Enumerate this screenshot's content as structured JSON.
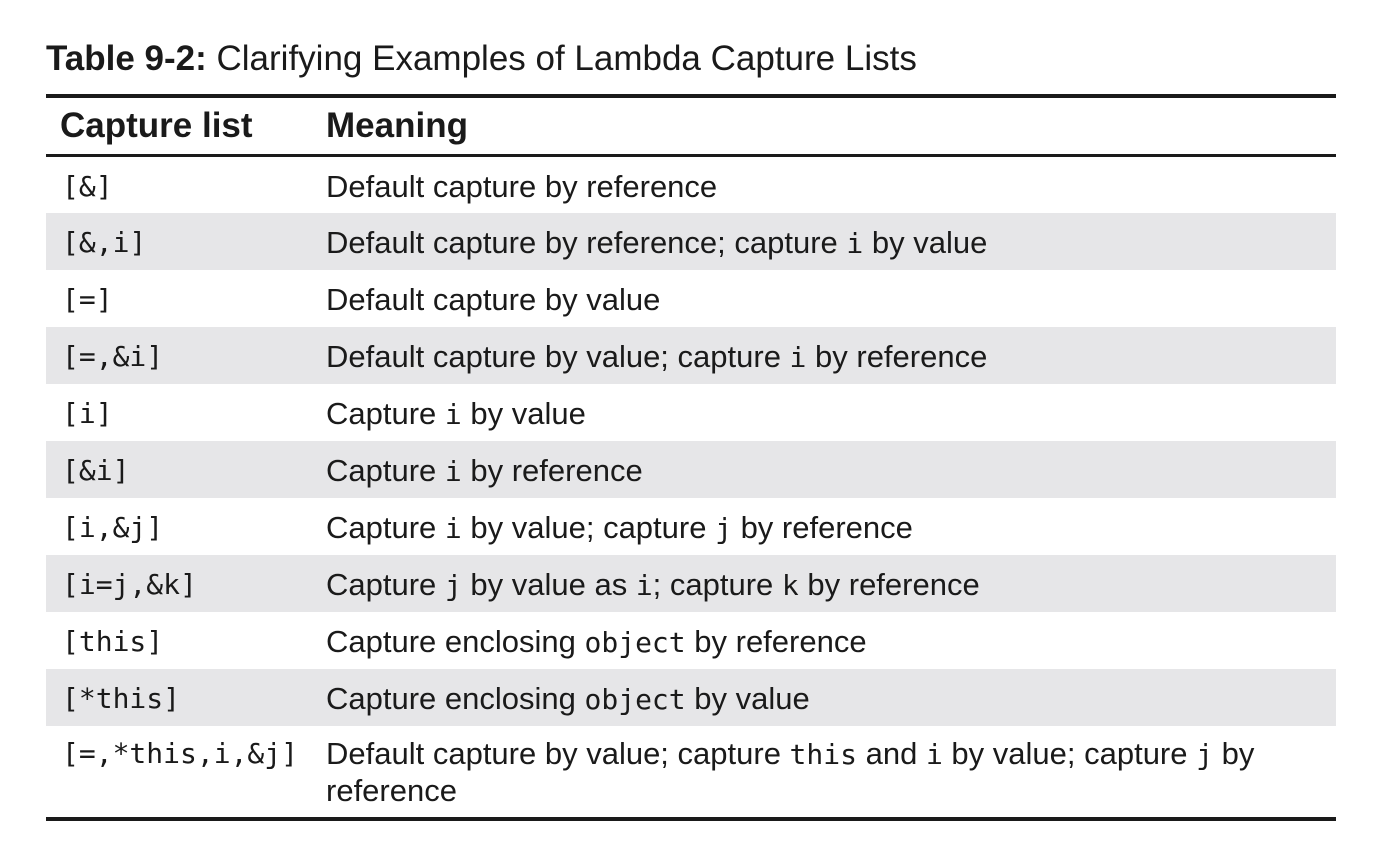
{
  "caption": {
    "label": "Table 9-2:",
    "text": " Clarifying Examples of Lambda Capture Lists"
  },
  "headers": [
    "Capture list",
    "Meaning"
  ],
  "rows": [
    {
      "capture": "[&]",
      "meaning": [
        {
          "t": "Default capture by reference"
        }
      ]
    },
    {
      "capture": "[&,i]",
      "meaning": [
        {
          "t": "Default capture by reference; capture "
        },
        {
          "c": "i"
        },
        {
          "t": " by value"
        }
      ]
    },
    {
      "capture": "[=]",
      "meaning": [
        {
          "t": "Default capture by value"
        }
      ]
    },
    {
      "capture": "[=,&i]",
      "meaning": [
        {
          "t": "Default capture by value; capture "
        },
        {
          "c": "i"
        },
        {
          "t": " by reference"
        }
      ]
    },
    {
      "capture": "[i]",
      "meaning": [
        {
          "t": "Capture "
        },
        {
          "c": "i"
        },
        {
          "t": " by value"
        }
      ]
    },
    {
      "capture": "[&i]",
      "meaning": [
        {
          "t": "Capture "
        },
        {
          "c": "i"
        },
        {
          "t": " by reference"
        }
      ]
    },
    {
      "capture": "[i,&j]",
      "meaning": [
        {
          "t": "Capture "
        },
        {
          "c": "i"
        },
        {
          "t": " by value; capture "
        },
        {
          "c": "j"
        },
        {
          "t": " by reference"
        }
      ]
    },
    {
      "capture": "[i=j,&k]",
      "meaning": [
        {
          "t": "Capture "
        },
        {
          "c": "j"
        },
        {
          "t": " by value as "
        },
        {
          "c": "i"
        },
        {
          "t": "; capture "
        },
        {
          "c": "k"
        },
        {
          "t": " by reference"
        }
      ]
    },
    {
      "capture": "[this]",
      "meaning": [
        {
          "t": "Capture enclosing "
        },
        {
          "c": "object"
        },
        {
          "t": " by reference"
        }
      ]
    },
    {
      "capture": "[*this]",
      "meaning": [
        {
          "t": "Capture enclosing "
        },
        {
          "c": "object"
        },
        {
          "t": " by value"
        }
      ]
    },
    {
      "capture": "[=,*this,i,&j]",
      "meaning": [
        {
          "t": "Default capture by value; capture "
        },
        {
          "c": "this"
        },
        {
          "t": " and "
        },
        {
          "c": "i"
        },
        {
          "t": " by value; capture "
        },
        {
          "c": "j"
        },
        {
          "t": " by reference"
        }
      ]
    }
  ]
}
